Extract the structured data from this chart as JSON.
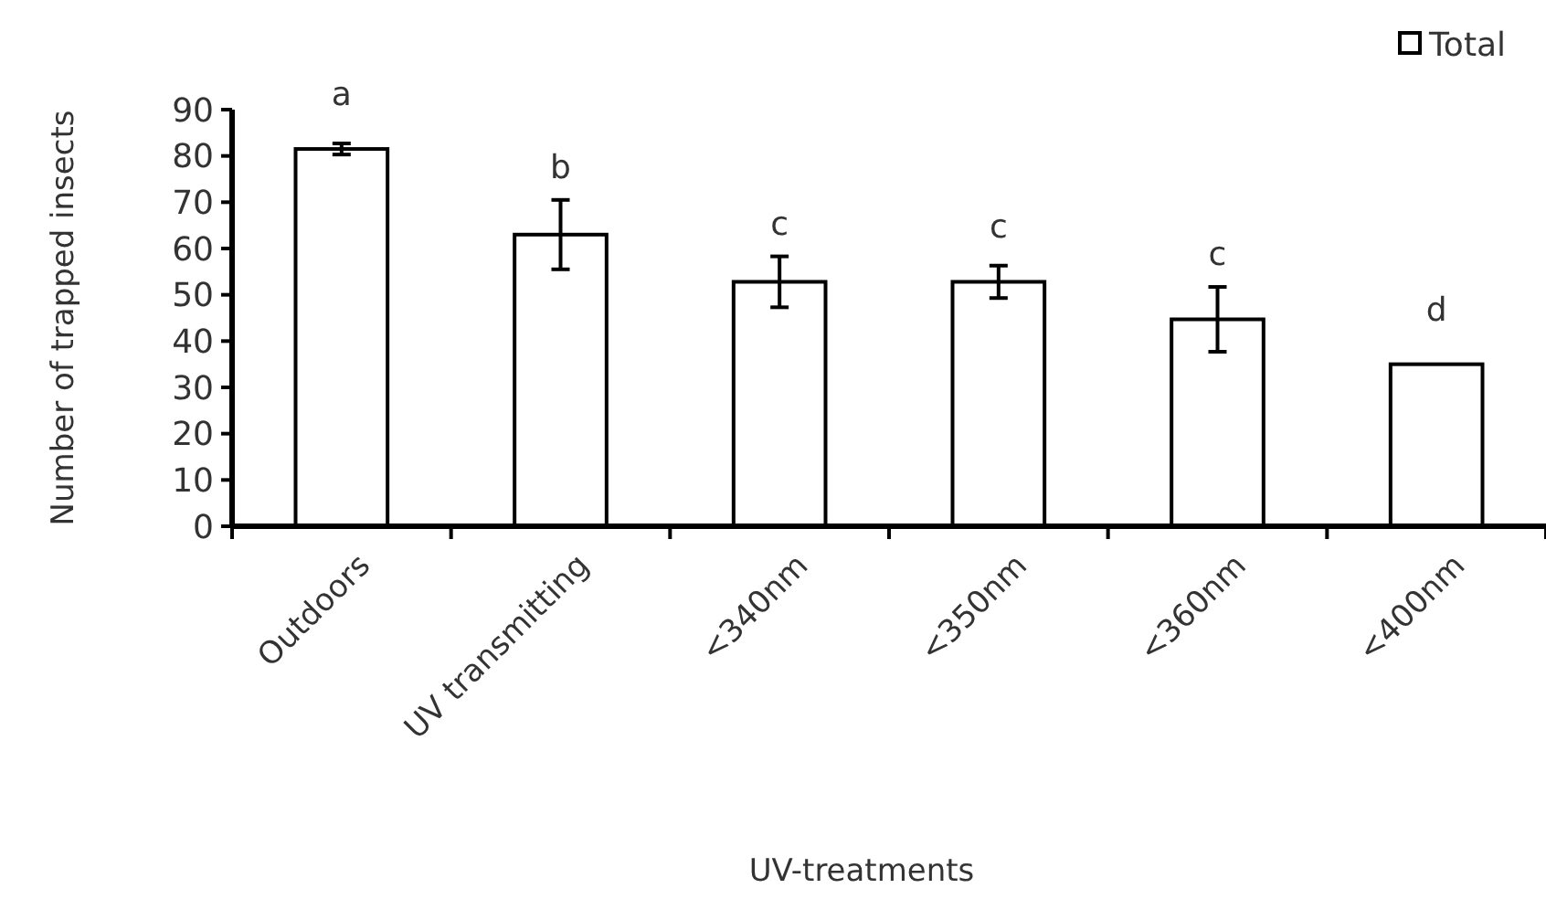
{
  "chart_data": {
    "type": "bar",
    "xlabel": "UV-treatments",
    "ylabel": "Number of trapped insects",
    "categories": [
      "Outdoors",
      "UV transmitting",
      "<340nm",
      "<350nm",
      "<360nm",
      "<400nm"
    ],
    "series": [
      {
        "name": "Total",
        "color": "#ffffff",
        "values": [
          81.5,
          63,
          52.8,
          52.8,
          44.7,
          35
        ],
        "errors": [
          1.2,
          7.5,
          5.5,
          3.5,
          7,
          null
        ]
      }
    ],
    "ylim": [
      0,
      90
    ],
    "yticks": [
      0,
      10,
      20,
      30,
      40,
      50,
      60,
      70,
      80,
      90
    ],
    "grid": false,
    "legend": "top right",
    "annotations": [
      "a",
      "b",
      "c",
      "c",
      "c",
      "d"
    ]
  }
}
